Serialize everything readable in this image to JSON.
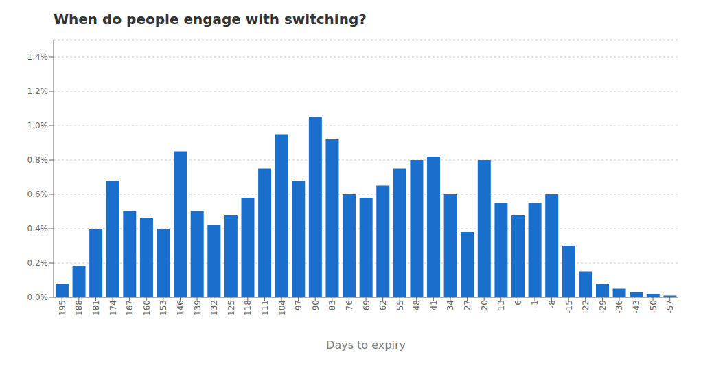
{
  "chart_data": {
    "type": "bar",
    "title": "When do people engage with switching?",
    "x_label": "Days to expiry",
    "categories": [
      "195",
      "188",
      "181",
      "174",
      "167",
      "160",
      "153",
      "146",
      "139",
      "132",
      "125",
      "118",
      "111",
      "104",
      "97",
      "90",
      "83",
      "76",
      "69",
      "62",
      "55",
      "48",
      "41",
      "34",
      "27",
      "20",
      "13",
      "6",
      "-1",
      "-8",
      "-15",
      "-22",
      "-29",
      "-36",
      "-43",
      "-50",
      "-57"
    ],
    "values": [
      0.0008,
      0.0018,
      0.004,
      0.0068,
      0.005,
      0.0046,
      0.004,
      0.0085,
      0.005,
      0.0042,
      0.0048,
      0.0058,
      0.0075,
      0.0095,
      0.0068,
      0.0105,
      0.0092,
      0.006,
      0.0058,
      0.0065,
      0.0075,
      0.008,
      0.0082,
      0.006,
      0.0038,
      0.008,
      0.0055,
      0.0048,
      0.0055,
      0.006,
      0.003,
      0.0015,
      0.0008,
      0.0005,
      0.0003,
      0.0002,
      0.0001
    ],
    "color": "#1a6fcc",
    "ylim": [
      0,
      0.015
    ],
    "yticks": [
      {
        "value": 0.0,
        "label": "0.0%"
      },
      {
        "value": 0.002,
        "label": "0.2%"
      },
      {
        "value": 0.004,
        "label": "0.4%"
      },
      {
        "value": 0.006,
        "label": "0.6%"
      },
      {
        "value": 0.008,
        "label": "0.8%"
      },
      {
        "value": 0.01,
        "label": "1.0%"
      },
      {
        "value": 0.012,
        "label": "1.2%"
      },
      {
        "value": 0.014,
        "label": "1.4%"
      }
    ],
    "grid": true
  }
}
